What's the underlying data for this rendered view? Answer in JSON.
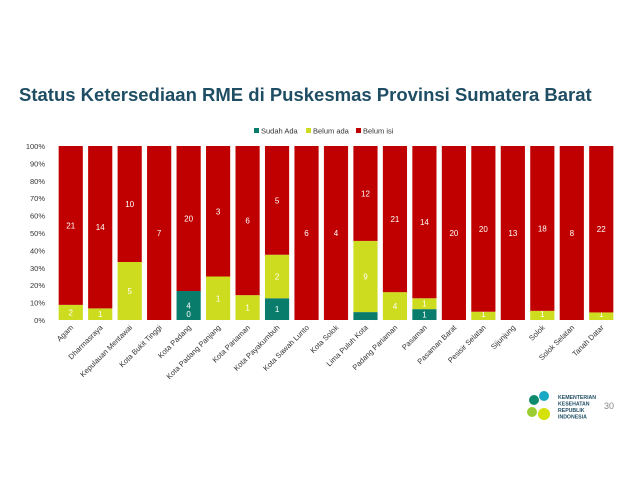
{
  "title": "Status Ketersediaan RME di Puskesmas Provinsi Sumatera Barat",
  "page_number": "30",
  "logo": {
    "lines": [
      "KEMENTERIAN",
      "KESEHATAN",
      "REPUBLIK",
      "INDONESIA"
    ],
    "colors": [
      "#0e8a6e",
      "#1aa9c4",
      "#9acd32",
      "#d4e10b"
    ]
  },
  "colors": {
    "sudah": "#0a7c6b",
    "belum_ada": "#cddc1e",
    "belum_isi": "#c00000"
  },
  "chart_data": {
    "type": "bar",
    "stacked": "percent",
    "title": "Status Ketersediaan RME di Puskesmas Provinsi Sumatera Barat",
    "legend_position": "top",
    "yticks": [
      "0%",
      "10%",
      "20%",
      "30%",
      "40%",
      "50%",
      "60%",
      "70%",
      "80%",
      "90%",
      "100%"
    ],
    "ylim": [
      0,
      100
    ],
    "categories": [
      "Agam",
      "Dharmasraya",
      "Kepulauan Mentawai",
      "Kota Bukit Tinggi",
      "Kota Padang",
      "Kota Padang Panjang",
      "Kota Pariaman",
      "Kota Payakumbuh",
      "Kota Sawah Lunto",
      "Kota Solok",
      "Lima Puluh Kota",
      "Padang Pariaman",
      "Pasaman",
      "Pasaman Barat",
      "Pesisir Selatan",
      "Sijunjung",
      "Solok",
      "Solok Selatan",
      "Tanah Datar"
    ],
    "series": [
      {
        "name": "Sudah Ada",
        "values": [
          0,
          0,
          0,
          0,
          4,
          0,
          0,
          1,
          0,
          0,
          1,
          0,
          1,
          0,
          0,
          0,
          0,
          0,
          0
        ],
        "labels": [
          "0",
          "0",
          "0",
          "0",
          "4",
          "0",
          "0",
          "1",
          "0",
          "0",
          "1",
          "0",
          "1",
          "0",
          "0",
          "0",
          "0",
          "0",
          "0"
        ]
      },
      {
        "name": "Belum ada",
        "values": [
          2,
          1,
          5,
          0,
          0,
          1,
          1,
          2,
          0,
          0,
          9,
          4,
          1,
          0,
          1,
          0,
          1,
          0,
          1
        ],
        "labels": [
          "2",
          "1",
          "5",
          "0",
          "0",
          "1",
          "1",
          "2",
          "0",
          "0",
          "9",
          "4",
          "1",
          "0",
          "1",
          "0",
          "1",
          "0",
          "1"
        ]
      },
      {
        "name": "Belum isi",
        "values": [
          21,
          14,
          10,
          7,
          20,
          3,
          6,
          5,
          6,
          4,
          12,
          21,
          14,
          20,
          20,
          13,
          18,
          8,
          22
        ],
        "labels": [
          "21",
          "14",
          "10",
          "7",
          "20",
          "3",
          "6",
          "5",
          "6",
          "4",
          "12",
          "21",
          "14",
          "20",
          "20",
          "13",
          "18",
          "8",
          "22"
        ]
      }
    ]
  }
}
